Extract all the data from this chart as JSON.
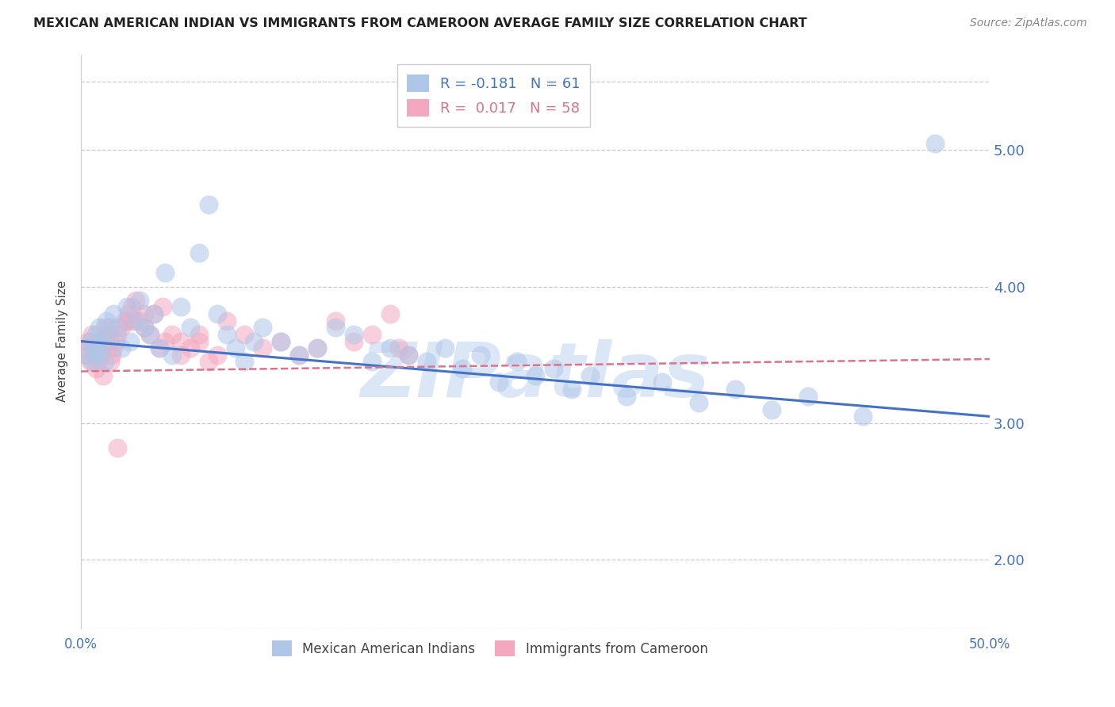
{
  "title": "MEXICAN AMERICAN INDIAN VS IMMIGRANTS FROM CAMEROON AVERAGE FAMILY SIZE CORRELATION CHART",
  "source": "Source: ZipAtlas.com",
  "ylabel": "Average Family Size",
  "xlim": [
    0.0,
    0.5
  ],
  "ylim": [
    1.5,
    5.7
  ],
  "yticks": [
    2.0,
    3.0,
    4.0,
    5.0
  ],
  "blue_scatter_x": [
    0.004,
    0.005,
    0.006,
    0.007,
    0.008,
    0.009,
    0.01,
    0.011,
    0.012,
    0.013,
    0.014,
    0.016,
    0.018,
    0.02,
    0.022,
    0.025,
    0.027,
    0.03,
    0.032,
    0.035,
    0.038,
    0.04,
    0.043,
    0.046,
    0.05,
    0.055,
    0.06,
    0.065,
    0.07,
    0.075,
    0.08,
    0.085,
    0.09,
    0.095,
    0.1,
    0.11,
    0.12,
    0.13,
    0.14,
    0.15,
    0.16,
    0.17,
    0.18,
    0.19,
    0.2,
    0.21,
    0.22,
    0.23,
    0.24,
    0.25,
    0.26,
    0.27,
    0.28,
    0.3,
    0.32,
    0.34,
    0.36,
    0.38,
    0.4,
    0.43,
    0.47
  ],
  "blue_scatter_y": [
    3.5,
    3.6,
    3.45,
    3.55,
    3.65,
    3.5,
    3.7,
    3.55,
    3.6,
    3.45,
    3.75,
    3.65,
    3.8,
    3.7,
    3.55,
    3.85,
    3.6,
    3.75,
    3.9,
    3.7,
    3.65,
    3.8,
    3.55,
    4.1,
    3.5,
    3.85,
    3.7,
    4.25,
    4.6,
    3.8,
    3.65,
    3.55,
    3.45,
    3.6,
    3.7,
    3.6,
    3.5,
    3.55,
    3.7,
    3.65,
    3.45,
    3.55,
    3.5,
    3.45,
    3.55,
    3.4,
    3.5,
    3.3,
    3.45,
    3.35,
    3.4,
    3.25,
    3.35,
    3.2,
    3.3,
    3.15,
    3.25,
    3.1,
    3.2,
    3.05,
    5.05
  ],
  "pink_scatter_x": [
    0.002,
    0.003,
    0.004,
    0.005,
    0.006,
    0.007,
    0.008,
    0.009,
    0.01,
    0.011,
    0.012,
    0.013,
    0.014,
    0.015,
    0.016,
    0.017,
    0.018,
    0.019,
    0.02,
    0.022,
    0.024,
    0.026,
    0.028,
    0.03,
    0.032,
    0.035,
    0.038,
    0.04,
    0.043,
    0.046,
    0.05,
    0.055,
    0.06,
    0.065,
    0.07,
    0.075,
    0.08,
    0.09,
    0.1,
    0.11,
    0.12,
    0.13,
    0.14,
    0.15,
    0.16,
    0.17,
    0.175,
    0.015,
    0.025,
    0.035,
    0.045,
    0.055,
    0.065,
    0.008,
    0.012,
    0.02,
    0.028,
    0.18
  ],
  "pink_scatter_y": [
    3.55,
    3.5,
    3.6,
    3.45,
    3.65,
    3.5,
    3.55,
    3.45,
    3.6,
    3.5,
    3.55,
    3.7,
    3.65,
    3.6,
    3.45,
    3.5,
    3.55,
    3.6,
    3.65,
    3.7,
    3.75,
    3.8,
    3.85,
    3.9,
    3.75,
    3.7,
    3.65,
    3.8,
    3.55,
    3.6,
    3.65,
    3.5,
    3.55,
    3.6,
    3.45,
    3.5,
    3.75,
    3.65,
    3.55,
    3.6,
    3.5,
    3.55,
    3.75,
    3.6,
    3.65,
    3.8,
    3.55,
    3.7,
    3.75,
    3.8,
    3.85,
    3.6,
    3.65,
    3.4,
    3.35,
    2.82,
    3.75,
    3.5
  ],
  "blue_line": {
    "x": [
      0.0,
      0.5
    ],
    "y": [
      3.6,
      3.05
    ]
  },
  "pink_line": {
    "x": [
      0.0,
      0.5
    ],
    "y": [
      3.38,
      3.47
    ]
  },
  "blue_color": "#4472c4",
  "pink_color": "#d9748a",
  "blue_scatter_color": "#aec6e8",
  "pink_scatter_color": "#f4a8c0",
  "grid_color": "#cccccc",
  "watermark_text": "ZIPatlas",
  "watermark_color": "#ccddf5",
  "title_fontsize": 11.5,
  "axis_label_fontsize": 11,
  "tick_fontsize": 12,
  "ytick_fontsize": 13,
  "source_fontsize": 10
}
